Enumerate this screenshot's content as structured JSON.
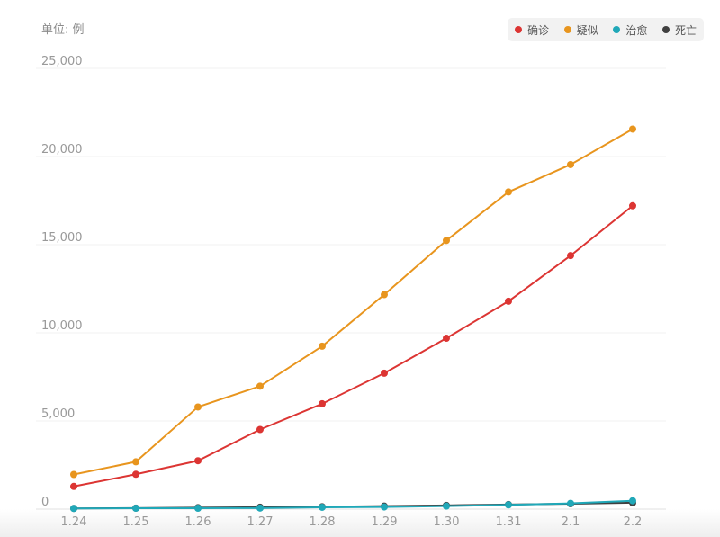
{
  "unit_label": "单位: 例",
  "legend": [
    {
      "label": "确诊",
      "color": "#dc3533"
    },
    {
      "label": "疑似",
      "color": "#e8951e"
    },
    {
      "label": "治愈",
      "color": "#20a8b8"
    },
    {
      "label": "死亡",
      "color": "#404040"
    }
  ],
  "chart_data": {
    "type": "line",
    "categories": [
      "1.24",
      "1.25",
      "1.26",
      "1.27",
      "1.28",
      "1.29",
      "1.30",
      "1.31",
      "2.1",
      "2.2"
    ],
    "y_ticks": [
      "0",
      "5,000",
      "10,000",
      "15,000",
      "20,000",
      "25,000"
    ],
    "ylim": [
      0,
      25000
    ],
    "ylabel": "单位: 例",
    "grid": true,
    "legend_position": "top-right",
    "series": [
      {
        "name": "确诊",
        "color": "#dc3533",
        "values": [
          1287,
          1975,
          2744,
          4515,
          5974,
          7711,
          9692,
          11791,
          14380,
          17205
        ]
      },
      {
        "name": "疑似",
        "color": "#e8951e",
        "values": [
          1965,
          2684,
          5794,
          6973,
          9239,
          12167,
          15238,
          17988,
          19544,
          21558
        ]
      },
      {
        "name": "治愈",
        "color": "#20a8b8",
        "values": [
          38,
          49,
          51,
          60,
          103,
          124,
          171,
          243,
          328,
          475
        ]
      },
      {
        "name": "死亡",
        "color": "#404040",
        "values": [
          41,
          56,
          80,
          106,
          132,
          170,
          213,
          259,
          304,
          361
        ]
      }
    ]
  }
}
